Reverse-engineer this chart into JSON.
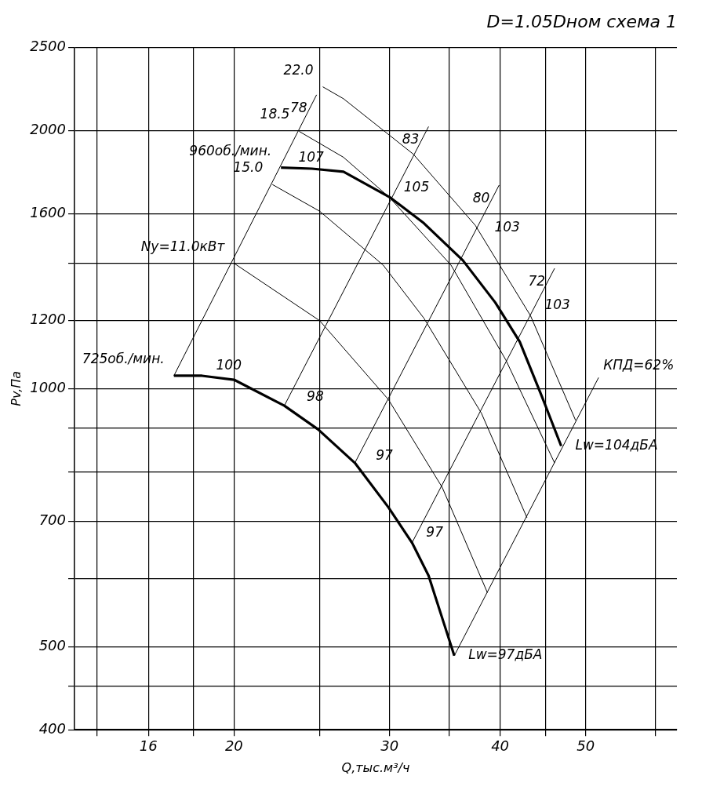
{
  "chart_data": {
    "type": "line",
    "title": "D=1.05Dном схема 1",
    "xlabel": "Q,тыс.м³/ч",
    "ylabel": "Pv,Па",
    "log": "xy",
    "grid": true,
    "legend": false,
    "marker": "none",
    "line_style": "solid",
    "xlim": [
      13.2,
      63.4
    ],
    "xticks": [
      {
        "value": 14,
        "label": null
      },
      16,
      {
        "value": 18,
        "label": null
      },
      20,
      {
        "value": 25,
        "label": null
      },
      30,
      {
        "value": 35,
        "label": null
      },
      40,
      {
        "value": 45,
        "label": null
      },
      50,
      {
        "value": 60,
        "label": null
      }
    ],
    "ylim": [
      400,
      2500
    ],
    "yticks": [
      400,
      {
        "value": 450,
        "label": null
      },
      500,
      {
        "value": 600,
        "label": null
      },
      700,
      {
        "value": 800,
        "label": null
      },
      {
        "value": 900,
        "label": null
      },
      1000,
      1200,
      {
        "value": 1400,
        "label": null
      },
      1600,
      2000,
      2500
    ],
    "series": [
      {
        "name": "960об./мин.",
        "color": "#000000",
        "x": [
          22.6,
          24.5,
          26.6,
          30.0,
          32.8,
          36.3,
          39.5,
          42.1,
          44.6,
          46.9
        ],
        "values": [
          1810,
          1805,
          1790,
          1672,
          1559,
          1411,
          1260,
          1134,
          979,
          857
        ]
      },
      {
        "name": "725об./мин.",
        "color": "#000000",
        "x": [
          17.1,
          18.4,
          20.0,
          22.8,
          24.9,
          27.4,
          29.9,
          31.8,
          33.2,
          34.6,
          35.5
        ],
        "values": [
          1035,
          1035,
          1024,
          955,
          896,
          819,
          727,
          661,
          605,
          530,
          488
        ]
      },
      {
        "name": "22.0",
        "color": "#000000",
        "x": [
          25.2,
          26.6,
          31.9,
          37.5,
          43.3,
          48.7
        ],
        "values": [
          2249,
          2178,
          1877,
          1550,
          1216,
          918
        ]
      },
      {
        "name": "18.5",
        "color": "#000000",
        "x": [
          23.7,
          26.6,
          30.0,
          35.2,
          40.6,
          46.1
        ],
        "values": [
          1995,
          1861,
          1670,
          1393,
          1080,
          819
        ]
      },
      {
        "name": "15.0",
        "color": "#000000",
        "x": [
          22.1,
          25.0,
          29.5,
          32.8,
          38.1,
          42.9
        ],
        "values": [
          1730,
          1610,
          1393,
          1208,
          936,
          707
        ]
      },
      {
        "name": "Ny=11.0кВт",
        "color": "#000000",
        "x": [
          20.0,
          25.0,
          29.9,
          34.4,
          38.7
        ],
        "values": [
          1400,
          1200,
          971,
          767,
          578
        ]
      },
      {
        "name": "78",
        "color": "#000000",
        "x": [
          17.1,
          24.8
        ],
        "values": [
          1035,
          2201
        ]
      },
      {
        "name": "83",
        "color": "#000000",
        "x": [
          22.8,
          33.2
        ],
        "values": [
          955,
          2021
        ]
      },
      {
        "name": "80",
        "color": "#000000",
        "x": [
          27.4,
          39.9
        ],
        "values": [
          819,
          1727
        ]
      },
      {
        "name": "72",
        "color": "#000000",
        "x": [
          31.8,
          46.1
        ],
        "values": [
          661,
          1381
        ]
      },
      {
        "name": "КПД=62%",
        "color": "#000000",
        "x": [
          35.5,
          51.7
        ],
        "values": [
          488,
          1030
        ]
      }
    ],
    "annotations": [
      {
        "text": "107",
        "x": 22.8,
        "y": 1810
      },
      {
        "text": "105",
        "x": 30.0,
        "y": 1670
      },
      {
        "text": "103",
        "x": 38.0,
        "y": 1500
      },
      {
        "text": "103",
        "x": 43.3,
        "y": 1216
      },
      {
        "text": "100",
        "x": 18.4,
        "y": 1035
      },
      {
        "text": "98",
        "x": 23.3,
        "y": 951
      },
      {
        "text": "97",
        "x": 27.9,
        "y": 812
      },
      {
        "text": "97",
        "x": 31.8,
        "y": 661
      },
      {
        "text": "Lw=104дБА",
        "x": 46.9,
        "y": 857
      },
      {
        "text": "Lw=97дБА",
        "x": 35.5,
        "y": 488
      }
    ]
  }
}
